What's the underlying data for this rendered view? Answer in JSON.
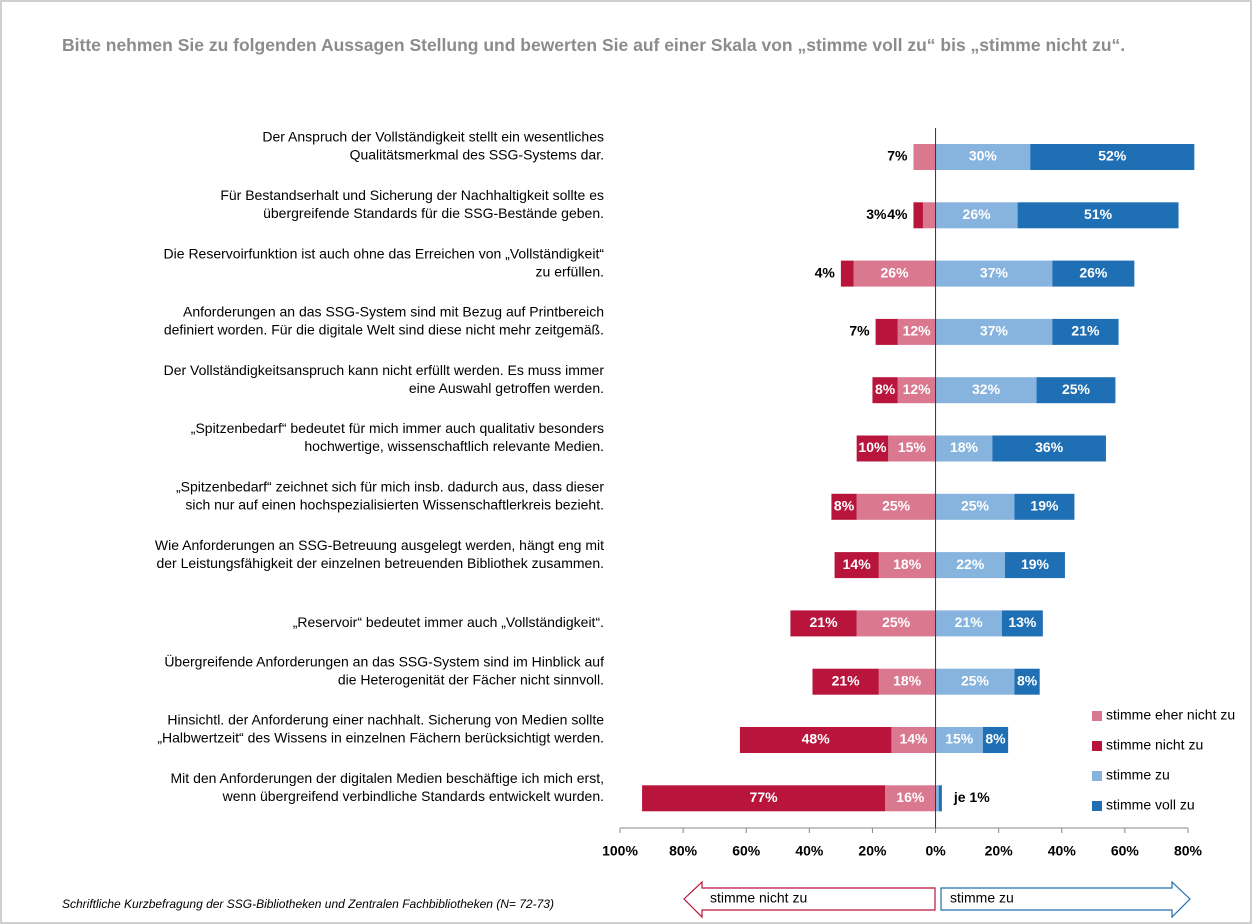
{
  "chart_data": {
    "type": "diverging-bar",
    "title": "Bitte nehmen Sie zu folgenden Aussagen Stellung und bewerten Sie auf einer Skala von „stimme voll zu“ bis „stimme nicht zu“.",
    "categories": [
      [
        "Der Anspruch der Vollständigkeit stellt ein wesentliches",
        "Qualitätsmerkmal des SSG-Systems dar."
      ],
      [
        "Für Bestandserhalt und Sicherung der Nachhaltigkeit sollte es",
        "übergreifende Standards für die SSG-Bestände geben."
      ],
      [
        "Die Reservoirfunktion ist auch ohne das Erreichen von „Vollständigkeit“",
        "zu erfüllen."
      ],
      [
        "Anforderungen an das SSG-System sind mit Bezug auf Printbereich",
        "definiert worden. Für die digitale Welt sind diese nicht mehr zeitgemäß."
      ],
      [
        "Der Vollständigkeitsanspruch kann nicht erfüllt werden. Es muss immer",
        "eine Auswahl getroffen werden."
      ],
      [
        "„Spitzenbedarf“ bedeutet für mich immer auch qualitativ besonders",
        "hochwertige, wissenschaftlich relevante Medien."
      ],
      [
        "„Spitzenbedarf“ zeichnet sich für mich insb. dadurch aus, dass dieser",
        "sich nur auf einen hochspezialisierten Wissenschaftlerkreis bezieht."
      ],
      [
        "Wie Anforderungen an SSG-Betreuung ausgelegt werden, hängt eng mit",
        "der Leistungsfähigkeit der einzelnen betreuenden Bibliothek zusammen."
      ],
      [
        "„Reservoir“ bedeutet immer auch „Vollständigkeit“."
      ],
      [
        "Übergreifende Anforderungen an das SSG-System sind im Hinblick auf",
        "die Heterogenität der Fächer nicht sinnvoll."
      ],
      [
        "Hinsichtl. der Anforderung einer nachhalt. Sicherung von Medien sollte",
        "„Halbwertzeit“ des Wissens in einzelnen Fächern berücksichtigt werden."
      ],
      [
        "Mit den Anforderungen der digitalen Medien beschäftige ich mich erst,",
        "wenn übergreifend verbindliche Standards entwickelt wurden."
      ]
    ],
    "series": [
      {
        "name": "stimme eher nicht zu",
        "color": "#d9788f",
        "side": "negative",
        "values": [
          7,
          4,
          26,
          12,
          12,
          15,
          25,
          18,
          25,
          18,
          14,
          16
        ],
        "value_labels": [
          "7%",
          "4%",
          "26%",
          "12%",
          "12%",
          "15%",
          "25%",
          "18%",
          "25%",
          "18%",
          "14%",
          "16%"
        ]
      },
      {
        "name": "stimme nicht zu",
        "color": "#b8143c",
        "side": "negative",
        "values": [
          0,
          3,
          4,
          7,
          8,
          10,
          8,
          14,
          21,
          21,
          48,
          77
        ],
        "value_labels": [
          null,
          "3%",
          "4%",
          "7%",
          "8%",
          "10%",
          "8%",
          "14%",
          "21%",
          "21%",
          "48%",
          "77%"
        ]
      },
      {
        "name": "stimme zu",
        "color": "#86b4de",
        "side": "positive",
        "values": [
          30,
          26,
          37,
          37,
          32,
          18,
          25,
          22,
          21,
          25,
          15,
          1
        ],
        "value_labels": [
          "30%",
          "26%",
          "37%",
          "37%",
          "32%",
          "18%",
          "25%",
          "22%",
          "21%",
          "25%",
          "15%",
          null
        ]
      },
      {
        "name": "stimme voll zu",
        "color": "#1f6fb4",
        "side": "positive",
        "values": [
          52,
          51,
          26,
          21,
          25,
          36,
          19,
          19,
          13,
          8,
          8,
          1
        ],
        "value_labels": [
          "52%",
          "51%",
          "26%",
          "21%",
          "25%",
          "36%",
          "19%",
          "19%",
          "13%",
          "8%",
          "8%",
          null
        ]
      }
    ],
    "annotations": [
      {
        "row": 11,
        "text": "je 1%"
      }
    ],
    "xlim": [
      -100,
      80
    ],
    "xticks": [
      {
        "value": -100,
        "label": "100%"
      },
      {
        "value": -80,
        "label": "80%"
      },
      {
        "value": -60,
        "label": "60%"
      },
      {
        "value": -40,
        "label": "40%"
      },
      {
        "value": -20,
        "label": "20%"
      },
      {
        "value": 0,
        "label": "0%"
      },
      {
        "value": 20,
        "label": "20%"
      },
      {
        "value": 40,
        "label": "40%"
      },
      {
        "value": 60,
        "label": "60%"
      },
      {
        "value": 80,
        "label": "80%"
      }
    ],
    "arrows": [
      "stimme nicht zu",
      "stimme zu"
    ],
    "footnote": "Schriftliche Kurzbefragung der SSG-Bibliotheken und Zentralen Fachbibliotheken (N= 72-73)"
  }
}
